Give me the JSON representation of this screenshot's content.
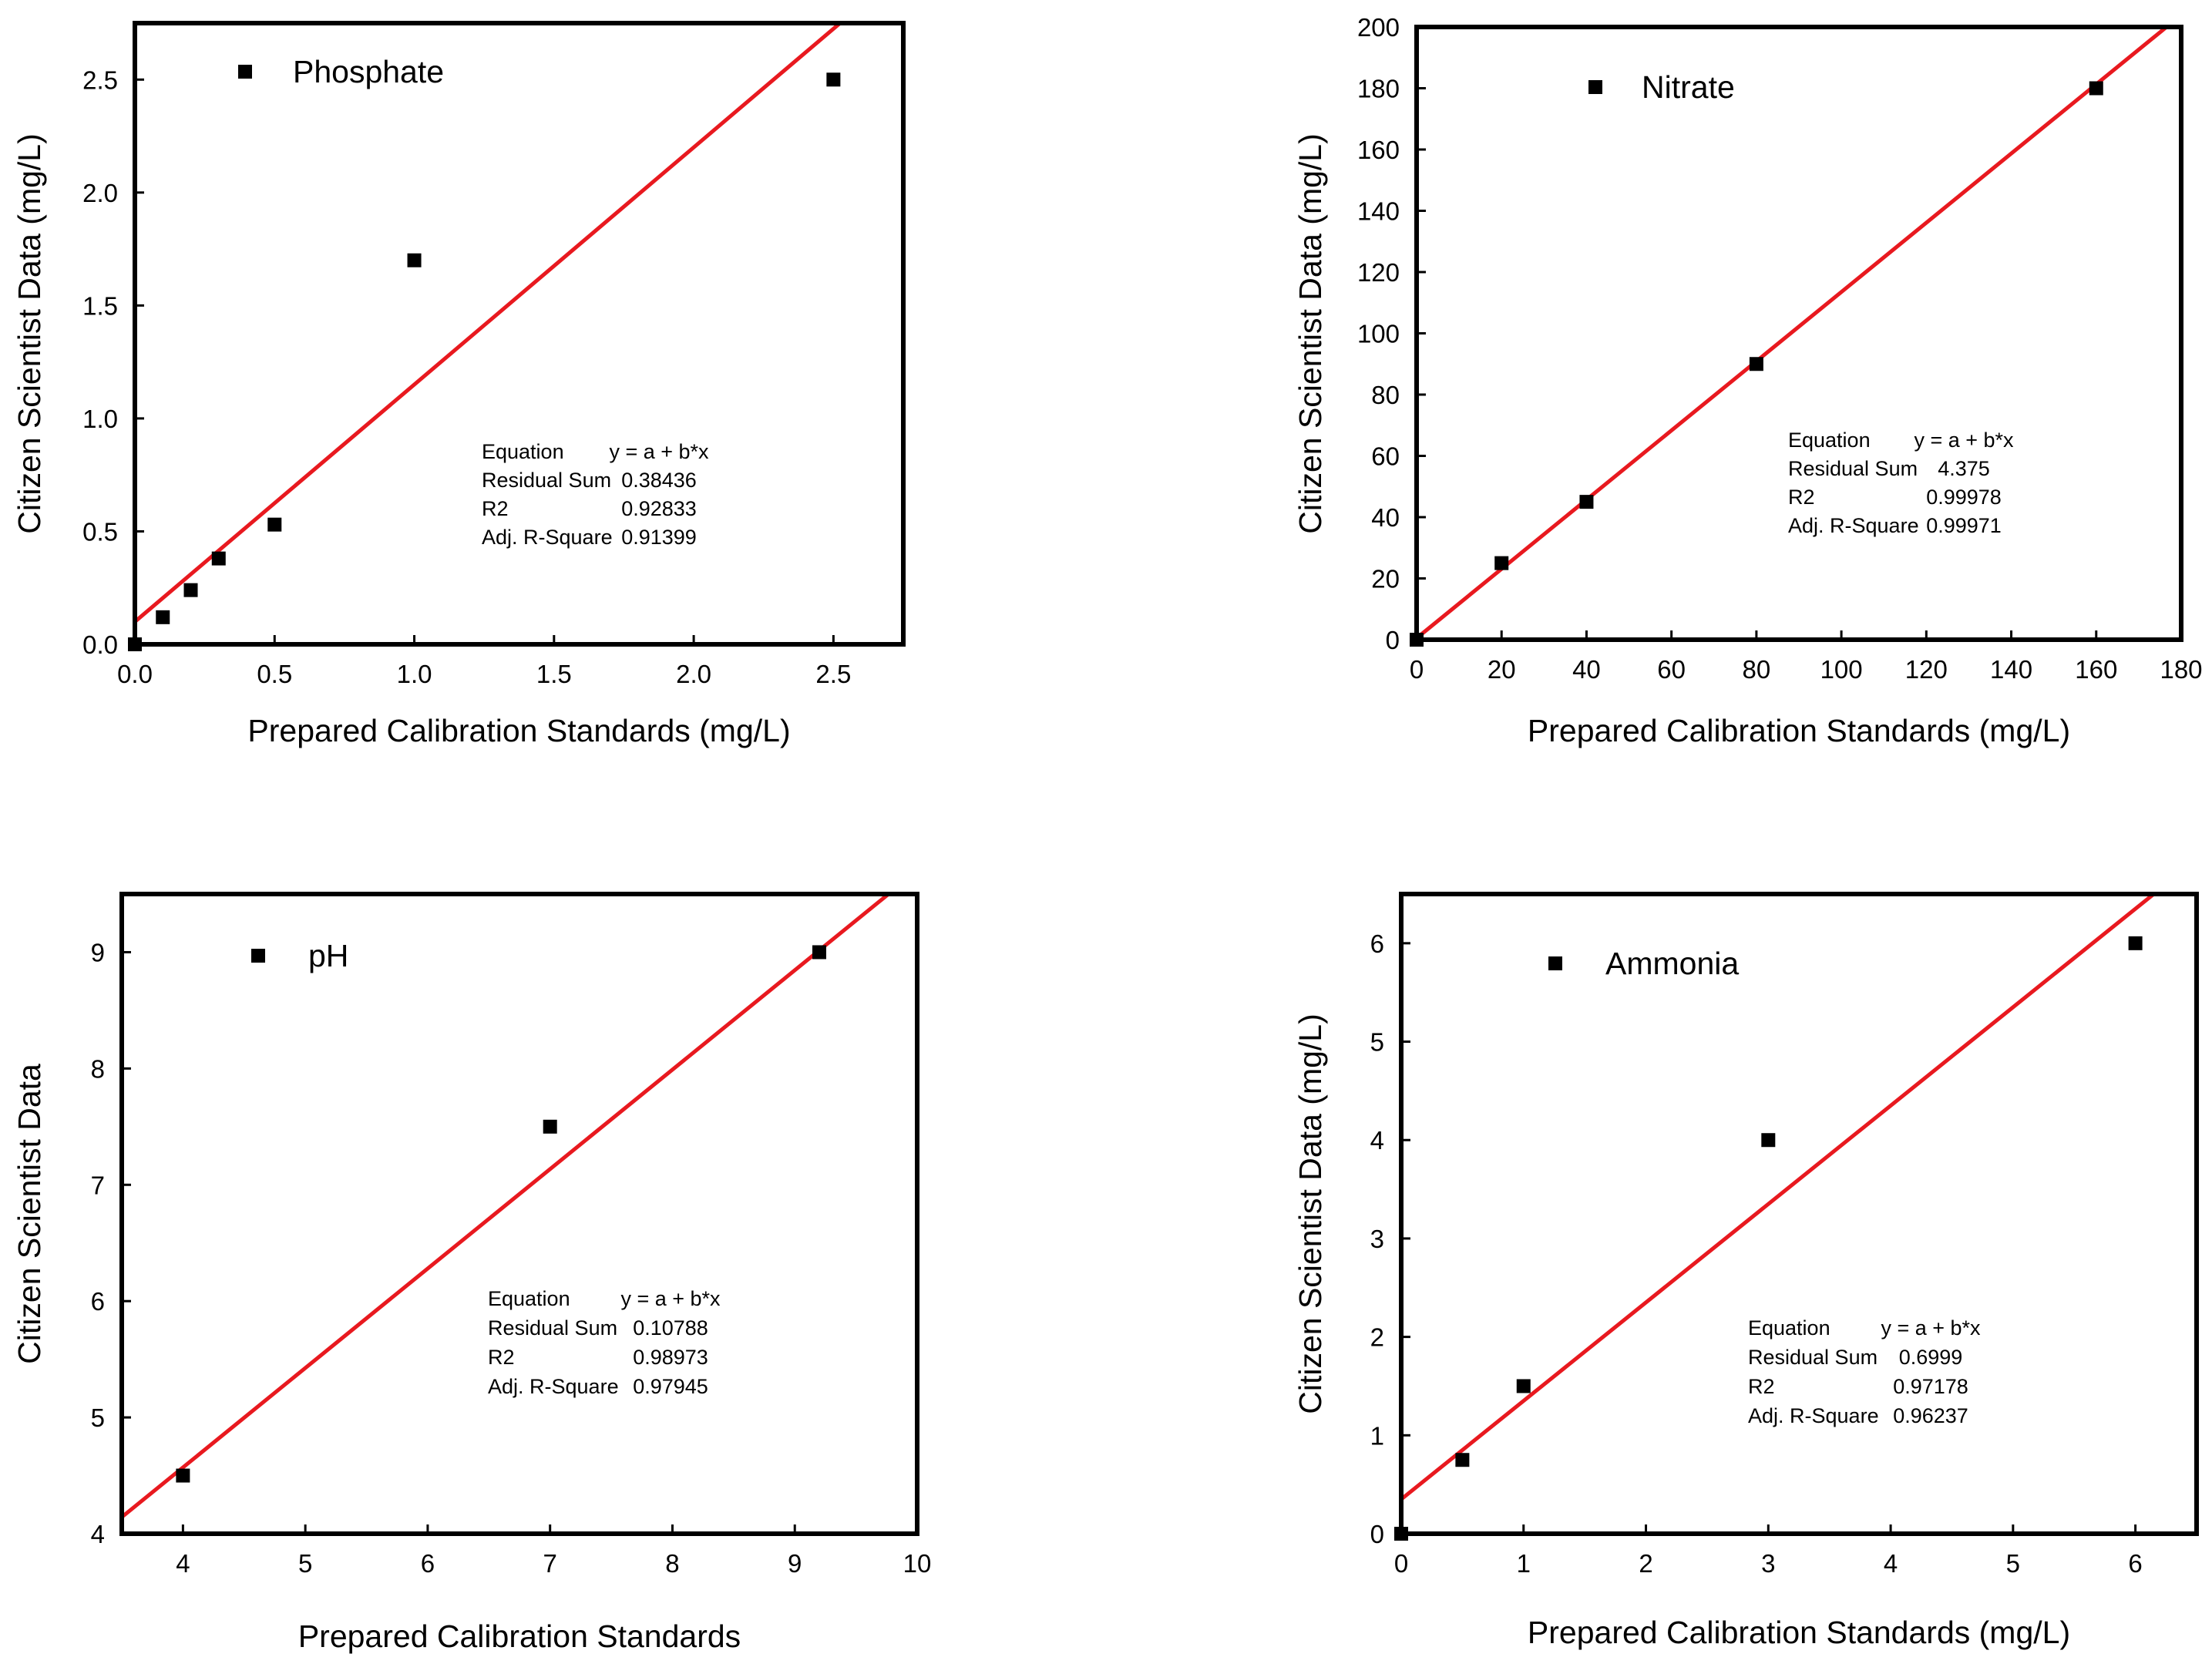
{
  "colors": {
    "fit_line": "#e8191f",
    "marker": "#000000",
    "frame": "#000000",
    "background": "#ffffff"
  },
  "chart_data": [
    {
      "type": "scatter",
      "id": "phosphate",
      "legend": "Phosphate",
      "xlabel": "Prepared Calibration Standards (mg/L)",
      "ylabel": "Citizen Scientist Data (mg/L)",
      "xlim": [
        0,
        2.75
      ],
      "ylim": [
        0,
        2.75
      ],
      "xticks": [
        "0.0",
        "0.5",
        "1.0",
        "1.5",
        "2.0",
        "2.5"
      ],
      "yticks": [
        "0.0",
        "0.5",
        "1.0",
        "1.5",
        "2.0",
        "2.5"
      ],
      "points": [
        {
          "x": 0.0,
          "y": 0.0
        },
        {
          "x": 0.1,
          "y": 0.12
        },
        {
          "x": 0.2,
          "y": 0.24
        },
        {
          "x": 0.3,
          "y": 0.38
        },
        {
          "x": 0.5,
          "y": 0.53
        },
        {
          "x": 1.0,
          "y": 1.7
        },
        {
          "x": 2.5,
          "y": 2.5
        }
      ],
      "fit": {
        "intercept": 0.1,
        "slope": 1.05
      },
      "stats": [
        {
          "label": "Equation",
          "value": "y = a + b*x"
        },
        {
          "label": "Residual Sum",
          "value": "0.38436"
        },
        {
          "label": "R2",
          "value": "0.92833"
        },
        {
          "label": "Adj. R-Square",
          "value": "0.91399"
        }
      ]
    },
    {
      "type": "scatter",
      "id": "nitrate",
      "legend": "Nitrate",
      "xlabel": "Prepared Calibration Standards (mg/L)",
      "ylabel": "Citizen Scientist Data (mg/L)",
      "xlim": [
        0,
        180
      ],
      "ylim": [
        0,
        200
      ],
      "xticks": [
        "0",
        "20",
        "40",
        "60",
        "80",
        "100",
        "120",
        "140",
        "160",
        "180"
      ],
      "yticks": [
        "0",
        "20",
        "40",
        "60",
        "80",
        "100",
        "120",
        "140",
        "160",
        "180",
        "200"
      ],
      "points": [
        {
          "x": 0,
          "y": 0
        },
        {
          "x": 20,
          "y": 25
        },
        {
          "x": 40,
          "y": 45
        },
        {
          "x": 80,
          "y": 90
        },
        {
          "x": 160,
          "y": 180
        }
      ],
      "fit": {
        "intercept": 0.5,
        "slope": 1.13
      },
      "stats": [
        {
          "label": "Equation",
          "value": "y = a + b*x"
        },
        {
          "label": "Residual Sum",
          "value": "4.375"
        },
        {
          "label": "R2",
          "value": "0.99978"
        },
        {
          "label": "Adj. R-Square",
          "value": "0.99971"
        }
      ]
    },
    {
      "type": "scatter",
      "id": "ph",
      "legend": "pH",
      "xlabel": "Prepared Calibration Standards",
      "ylabel": "Citizen Scientist Data",
      "xlim": [
        3.5,
        10
      ],
      "ylim": [
        4,
        9.5
      ],
      "xticks": [
        "4",
        "5",
        "6",
        "7",
        "8",
        "9",
        "10"
      ],
      "yticks": [
        "4",
        "5",
        "6",
        "7",
        "8",
        "9"
      ],
      "points": [
        {
          "x": 4.0,
          "y": 4.5
        },
        {
          "x": 7.0,
          "y": 7.5
        },
        {
          "x": 9.2,
          "y": 9.0
        }
      ],
      "fit": {
        "intercept": 1.15,
        "slope": 0.855
      },
      "stats": [
        {
          "label": "Equation",
          "value": "y = a + b*x"
        },
        {
          "label": "Residual Sum",
          "value": "0.10788"
        },
        {
          "label": "R2",
          "value": "0.98973"
        },
        {
          "label": "Adj. R-Square",
          "value": "0.97945"
        }
      ]
    },
    {
      "type": "scatter",
      "id": "ammonia",
      "legend": "Ammonia",
      "xlabel": "Prepared Calibration Standards (mg/L)",
      "ylabel": "Citizen Scientist Data (mg/L)",
      "xlim": [
        0,
        6.5
      ],
      "ylim": [
        0,
        6.5
      ],
      "xticks": [
        "0",
        "1",
        "2",
        "3",
        "4",
        "5",
        "6"
      ],
      "yticks": [
        "0",
        "1",
        "2",
        "3",
        "4",
        "5",
        "6"
      ],
      "points": [
        {
          "x": 0,
          "y": 0
        },
        {
          "x": 0.5,
          "y": 0.75
        },
        {
          "x": 1.0,
          "y": 1.5
        },
        {
          "x": 3.0,
          "y": 4.0
        },
        {
          "x": 6.0,
          "y": 6.0
        }
      ],
      "fit": {
        "intercept": 0.35,
        "slope": 1.0
      },
      "stats": [
        {
          "label": "Equation",
          "value": "y = a + b*x"
        },
        {
          "label": "Residual Sum",
          "value": "0.6999"
        },
        {
          "label": "R2",
          "value": "0.97178"
        },
        {
          "label": "Adj. R-Square",
          "value": "0.96237"
        }
      ]
    }
  ]
}
